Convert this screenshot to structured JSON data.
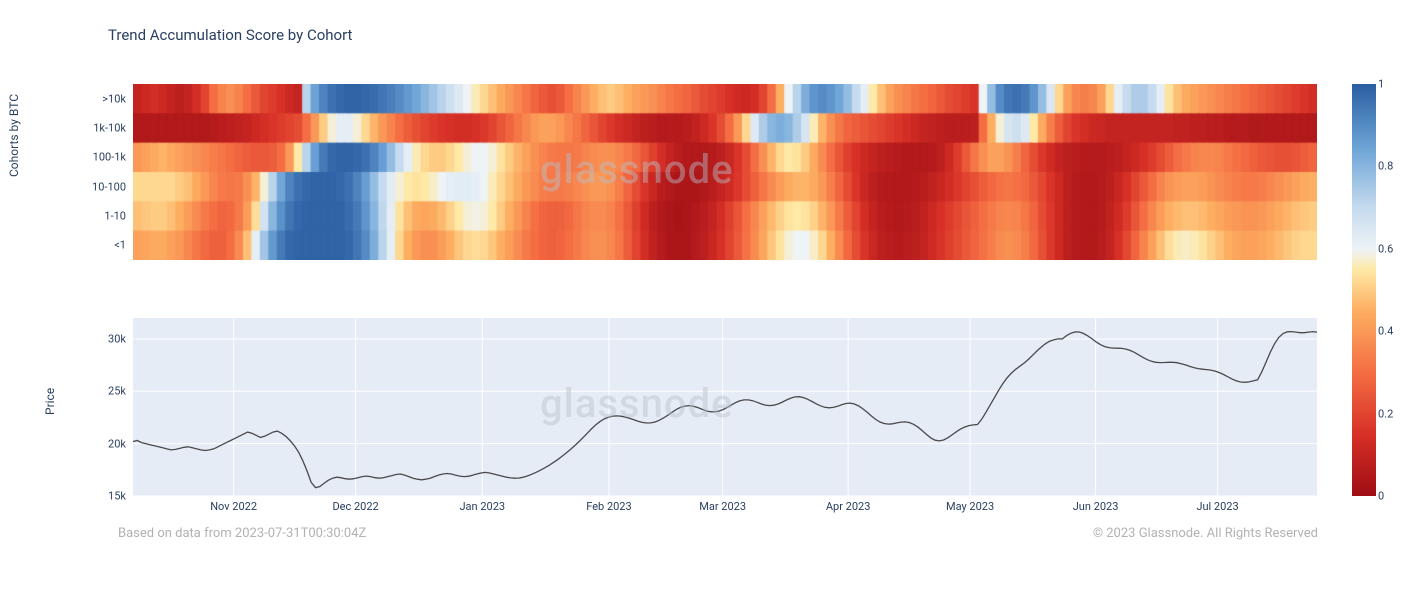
{
  "title": "Trend Accumulation Score by Cohort",
  "watermark": "glassnode",
  "footer_left": "Based on data from 2023-07-31T00:30:04Z",
  "footer_right": "© 2023 Glassnode. All Rights Reserved",
  "x_axis": {
    "labels": [
      "Nov 2022",
      "Dec 2022",
      "Jan 2023",
      "Feb 2023",
      "Mar 2023",
      "Apr 2023",
      "May 2023",
      "Jun 2023",
      "Jul 2023"
    ],
    "positions_pct": [
      8.5,
      18.8,
      29.5,
      40.2,
      49.8,
      60.4,
      70.7,
      81.3,
      91.6
    ]
  },
  "heatmap": {
    "type": "heatmap",
    "ylabel": "Cohorts by BTC",
    "y_categories": [
      ">10k",
      "1k-10k",
      "100-1k",
      "10-100",
      "1-10",
      "<1"
    ],
    "n_cols": 140,
    "colorscale": {
      "stops_value": [
        0.0,
        0.15,
        0.3,
        0.45,
        0.55,
        0.6,
        0.7,
        0.85,
        1.0
      ],
      "stops_color": [
        "#9e0d14",
        "#d73027",
        "#f46d43",
        "#fdae61",
        "#fee9a6",
        "#eef3f6",
        "#c6dbef",
        "#6ba3d6",
        "#2b5fa3"
      ]
    },
    "data": [
      [
        0.1,
        0.12,
        0.14,
        0.12,
        0.1,
        0.08,
        0.1,
        0.14,
        0.2,
        0.3,
        0.35,
        0.38,
        0.35,
        0.3,
        0.25,
        0.2,
        0.18,
        0.15,
        0.12,
        0.1,
        0.72,
        0.85,
        0.92,
        0.96,
        0.98,
        0.99,
        0.99,
        0.98,
        0.97,
        0.95,
        0.93,
        0.9,
        0.87,
        0.84,
        0.8,
        0.76,
        0.72,
        0.68,
        0.64,
        0.6,
        0.56,
        0.52,
        0.48,
        0.44,
        0.4,
        0.36,
        0.32,
        0.28,
        0.25,
        0.23,
        0.25,
        0.3,
        0.35,
        0.4,
        0.45,
        0.48,
        0.5,
        0.48,
        0.45,
        0.42,
        0.4,
        0.38,
        0.35,
        0.32,
        0.3,
        0.28,
        0.25,
        0.22,
        0.2,
        0.18,
        0.15,
        0.13,
        0.12,
        0.14,
        0.2,
        0.3,
        0.45,
        0.6,
        0.72,
        0.82,
        0.88,
        0.9,
        0.88,
        0.84,
        0.78,
        0.7,
        0.62,
        0.55,
        0.48,
        0.42,
        0.38,
        0.35,
        0.32,
        0.3,
        0.28,
        0.25,
        0.22,
        0.2,
        0.18,
        0.16,
        0.6,
        0.78,
        0.9,
        0.95,
        0.96,
        0.94,
        0.88,
        0.78,
        0.65,
        0.52,
        0.42,
        0.36,
        0.34,
        0.36,
        0.42,
        0.52,
        0.62,
        0.7,
        0.74,
        0.74,
        0.7,
        0.62,
        0.54,
        0.48,
        0.44,
        0.42,
        0.4,
        0.38,
        0.36,
        0.34,
        0.32,
        0.3,
        0.28,
        0.26,
        0.24,
        0.22,
        0.2,
        0.18,
        0.16,
        0.14
      ],
      [
        0.05,
        0.05,
        0.05,
        0.05,
        0.05,
        0.05,
        0.05,
        0.05,
        0.05,
        0.06,
        0.07,
        0.08,
        0.09,
        0.1,
        0.12,
        0.14,
        0.16,
        0.18,
        0.2,
        0.22,
        0.3,
        0.4,
        0.5,
        0.58,
        0.62,
        0.62,
        0.58,
        0.52,
        0.46,
        0.4,
        0.35,
        0.3,
        0.26,
        0.23,
        0.2,
        0.18,
        0.16,
        0.15,
        0.14,
        0.14,
        0.15,
        0.17,
        0.2,
        0.24,
        0.28,
        0.32,
        0.36,
        0.4,
        0.42,
        0.42,
        0.4,
        0.36,
        0.32,
        0.28,
        0.24,
        0.2,
        0.17,
        0.14,
        0.12,
        0.1,
        0.08,
        0.07,
        0.06,
        0.06,
        0.06,
        0.07,
        0.09,
        0.12,
        0.16,
        0.22,
        0.3,
        0.4,
        0.52,
        0.64,
        0.74,
        0.8,
        0.82,
        0.8,
        0.74,
        0.66,
        0.56,
        0.46,
        0.38,
        0.32,
        0.28,
        0.26,
        0.24,
        0.22,
        0.2,
        0.18,
        0.16,
        0.14,
        0.12,
        0.1,
        0.09,
        0.08,
        0.07,
        0.07,
        0.07,
        0.08,
        0.3,
        0.45,
        0.58,
        0.66,
        0.68,
        0.64,
        0.55,
        0.44,
        0.34,
        0.26,
        0.2,
        0.16,
        0.14,
        0.12,
        0.11,
        0.1,
        0.1,
        0.1,
        0.1,
        0.1,
        0.1,
        0.1,
        0.1,
        0.09,
        0.09,
        0.08,
        0.08,
        0.07,
        0.07,
        0.06,
        0.06,
        0.06,
        0.05,
        0.05,
        0.05,
        0.05,
        0.05,
        0.05,
        0.05,
        0.05
      ],
      [
        0.4,
        0.42,
        0.44,
        0.46,
        0.44,
        0.42,
        0.4,
        0.38,
        0.36,
        0.34,
        0.32,
        0.3,
        0.28,
        0.26,
        0.25,
        0.25,
        0.26,
        0.3,
        0.4,
        0.55,
        0.72,
        0.86,
        0.94,
        0.98,
        0.99,
        0.99,
        0.98,
        0.96,
        0.92,
        0.86,
        0.78,
        0.7,
        0.62,
        0.56,
        0.52,
        0.5,
        0.5,
        0.52,
        0.55,
        0.58,
        0.6,
        0.6,
        0.58,
        0.54,
        0.5,
        0.46,
        0.42,
        0.38,
        0.35,
        0.33,
        0.32,
        0.32,
        0.33,
        0.35,
        0.37,
        0.38,
        0.38,
        0.36,
        0.33,
        0.29,
        0.24,
        0.19,
        0.14,
        0.1,
        0.07,
        0.05,
        0.05,
        0.05,
        0.06,
        0.08,
        0.11,
        0.16,
        0.22,
        0.3,
        0.38,
        0.46,
        0.52,
        0.55,
        0.54,
        0.5,
        0.44,
        0.37,
        0.3,
        0.24,
        0.19,
        0.15,
        0.12,
        0.1,
        0.08,
        0.07,
        0.06,
        0.05,
        0.05,
        0.05,
        0.06,
        0.08,
        0.12,
        0.18,
        0.25,
        0.32,
        0.38,
        0.42,
        0.42,
        0.39,
        0.34,
        0.28,
        0.22,
        0.17,
        0.13,
        0.1,
        0.08,
        0.07,
        0.06,
        0.06,
        0.06,
        0.07,
        0.08,
        0.1,
        0.12,
        0.15,
        0.18,
        0.22,
        0.26,
        0.3,
        0.33,
        0.35,
        0.36,
        0.36,
        0.35,
        0.33,
        0.31,
        0.29,
        0.27,
        0.25,
        0.24,
        0.23,
        0.23,
        0.24,
        0.26,
        0.28
      ],
      [
        0.52,
        0.52,
        0.52,
        0.52,
        0.52,
        0.5,
        0.48,
        0.44,
        0.4,
        0.36,
        0.33,
        0.32,
        0.33,
        0.38,
        0.46,
        0.58,
        0.72,
        0.84,
        0.92,
        0.96,
        0.98,
        0.99,
        0.99,
        0.99,
        0.98,
        0.96,
        0.92,
        0.86,
        0.78,
        0.7,
        0.63,
        0.58,
        0.55,
        0.54,
        0.55,
        0.57,
        0.6,
        0.62,
        0.63,
        0.63,
        0.62,
        0.6,
        0.56,
        0.52,
        0.48,
        0.44,
        0.4,
        0.37,
        0.34,
        0.33,
        0.33,
        0.34,
        0.36,
        0.38,
        0.4,
        0.4,
        0.38,
        0.34,
        0.28,
        0.22,
        0.16,
        0.11,
        0.07,
        0.05,
        0.04,
        0.04,
        0.04,
        0.05,
        0.07,
        0.1,
        0.13,
        0.17,
        0.22,
        0.27,
        0.32,
        0.37,
        0.41,
        0.44,
        0.46,
        0.46,
        0.44,
        0.4,
        0.34,
        0.28,
        0.22,
        0.16,
        0.11,
        0.08,
        0.06,
        0.05,
        0.05,
        0.05,
        0.06,
        0.07,
        0.09,
        0.11,
        0.14,
        0.17,
        0.2,
        0.23,
        0.26,
        0.29,
        0.31,
        0.32,
        0.31,
        0.29,
        0.25,
        0.21,
        0.16,
        0.12,
        0.08,
        0.06,
        0.05,
        0.05,
        0.06,
        0.08,
        0.11,
        0.15,
        0.2,
        0.25,
        0.3,
        0.35,
        0.39,
        0.41,
        0.42,
        0.42,
        0.41,
        0.39,
        0.37,
        0.35,
        0.34,
        0.33,
        0.33,
        0.34,
        0.36,
        0.38,
        0.4,
        0.42,
        0.44,
        0.45
      ],
      [
        0.48,
        0.49,
        0.5,
        0.5,
        0.48,
        0.45,
        0.41,
        0.37,
        0.33,
        0.3,
        0.28,
        0.29,
        0.33,
        0.41,
        0.53,
        0.67,
        0.8,
        0.89,
        0.95,
        0.98,
        0.99,
        0.99,
        0.99,
        0.99,
        0.99,
        0.97,
        0.94,
        0.88,
        0.8,
        0.71,
        0.62,
        0.54,
        0.48,
        0.44,
        0.43,
        0.44,
        0.47,
        0.51,
        0.55,
        0.58,
        0.59,
        0.58,
        0.55,
        0.5,
        0.45,
        0.4,
        0.35,
        0.31,
        0.28,
        0.27,
        0.27,
        0.29,
        0.32,
        0.35,
        0.37,
        0.37,
        0.35,
        0.31,
        0.25,
        0.19,
        0.13,
        0.08,
        0.05,
        0.04,
        0.03,
        0.04,
        0.05,
        0.07,
        0.1,
        0.14,
        0.19,
        0.24,
        0.3,
        0.36,
        0.42,
        0.47,
        0.51,
        0.54,
        0.55,
        0.54,
        0.51,
        0.46,
        0.4,
        0.33,
        0.26,
        0.2,
        0.14,
        0.1,
        0.07,
        0.06,
        0.05,
        0.06,
        0.07,
        0.09,
        0.12,
        0.15,
        0.18,
        0.21,
        0.24,
        0.27,
        0.3,
        0.33,
        0.35,
        0.36,
        0.35,
        0.32,
        0.28,
        0.22,
        0.17,
        0.12,
        0.08,
        0.06,
        0.05,
        0.05,
        0.06,
        0.09,
        0.13,
        0.18,
        0.24,
        0.3,
        0.36,
        0.41,
        0.45,
        0.47,
        0.48,
        0.48,
        0.47,
        0.45,
        0.43,
        0.41,
        0.4,
        0.39,
        0.39,
        0.4,
        0.42,
        0.44,
        0.46,
        0.48,
        0.49,
        0.5
      ],
      [
        0.42,
        0.43,
        0.44,
        0.44,
        0.42,
        0.4,
        0.36,
        0.32,
        0.29,
        0.27,
        0.27,
        0.3,
        0.37,
        0.48,
        0.62,
        0.76,
        0.87,
        0.94,
        0.98,
        0.99,
        0.99,
        0.99,
        0.99,
        0.99,
        0.99,
        0.98,
        0.95,
        0.9,
        0.82,
        0.72,
        0.62,
        0.52,
        0.45,
        0.4,
        0.38,
        0.38,
        0.41,
        0.45,
        0.49,
        0.52,
        0.53,
        0.52,
        0.49,
        0.45,
        0.41,
        0.37,
        0.33,
        0.3,
        0.28,
        0.27,
        0.28,
        0.3,
        0.33,
        0.36,
        0.38,
        0.38,
        0.36,
        0.32,
        0.26,
        0.2,
        0.14,
        0.09,
        0.06,
        0.04,
        0.04,
        0.04,
        0.06,
        0.08,
        0.11,
        0.15,
        0.2,
        0.25,
        0.31,
        0.37,
        0.43,
        0.49,
        0.54,
        0.58,
        0.6,
        0.6,
        0.57,
        0.52,
        0.45,
        0.37,
        0.29,
        0.22,
        0.16,
        0.11,
        0.08,
        0.07,
        0.06,
        0.07,
        0.08,
        0.1,
        0.13,
        0.16,
        0.19,
        0.22,
        0.25,
        0.28,
        0.31,
        0.34,
        0.37,
        0.38,
        0.37,
        0.34,
        0.29,
        0.23,
        0.17,
        0.12,
        0.08,
        0.06,
        0.05,
        0.05,
        0.07,
        0.1,
        0.15,
        0.21,
        0.28,
        0.35,
        0.42,
        0.48,
        0.53,
        0.56,
        0.57,
        0.56,
        0.54,
        0.51,
        0.48,
        0.45,
        0.43,
        0.42,
        0.42,
        0.43,
        0.45,
        0.47,
        0.49,
        0.51,
        0.52,
        0.52
      ]
    ]
  },
  "price": {
    "type": "line",
    "ylabel": "Price",
    "ylim": [
      15000,
      32000
    ],
    "yticks": [
      15000,
      20000,
      25000,
      30000
    ],
    "ytick_labels": [
      "15k",
      "20k",
      "25k",
      "30k"
    ],
    "background": "#e5ecf6",
    "grid_color": "#ffffff",
    "line_color": "#4a4a4a",
    "line_width": 1.3,
    "n_points": 280,
    "series": [
      20200,
      20300,
      20100,
      20000,
      19900,
      19800,
      19700,
      19600,
      19500,
      19400,
      19450,
      19550,
      19650,
      19700,
      19600,
      19500,
      19400,
      19350,
      19400,
      19500,
      19700,
      19900,
      20100,
      20300,
      20500,
      20700,
      20900,
      21100,
      21000,
      20800,
      20600,
      20700,
      20900,
      21100,
      21200,
      21000,
      20700,
      20300,
      19800,
      19200,
      18400,
      17400,
      16300,
      15800,
      15900,
      16200,
      16500,
      16700,
      16800,
      16750,
      16650,
      16600,
      16650,
      16750,
      16850,
      16900,
      16850,
      16750,
      16700,
      16750,
      16850,
      16950,
      17050,
      17100,
      17000,
      16850,
      16700,
      16600,
      16550,
      16600,
      16700,
      16850,
      17000,
      17100,
      17150,
      17100,
      17000,
      16900,
      16850,
      16880,
      16980,
      17100,
      17200,
      17250,
      17200,
      17100,
      17000,
      16900,
      16800,
      16730,
      16700,
      16720,
      16800,
      16920,
      17080,
      17260,
      17460,
      17680,
      17920,
      18180,
      18460,
      18760,
      19080,
      19420,
      19780,
      20160,
      20560,
      20980,
      21400,
      21780,
      22100,
      22350,
      22520,
      22620,
      22650,
      22620,
      22540,
      22420,
      22280,
      22140,
      22030,
      21970,
      21980,
      22070,
      22230,
      22450,
      22710,
      22990,
      23250,
      23460,
      23590,
      23630,
      23580,
      23460,
      23300,
      23150,
      23050,
      23030,
      23100,
      23250,
      23460,
      23700,
      23920,
      24090,
      24180,
      24180,
      24100,
      23960,
      23800,
      23680,
      23630,
      23670,
      23790,
      23970,
      24170,
      24350,
      24460,
      24480,
      24400,
      24240,
      24030,
      23810,
      23610,
      23470,
      23420,
      23460,
      23570,
      23710,
      23830,
      23870,
      23790,
      23600,
      23320,
      22990,
      22640,
      22320,
      22070,
      21920,
      21870,
      21900,
      21980,
      22060,
      22080,
      22010,
      21840,
      21570,
      21230,
      20870,
      20550,
      20330,
      20260,
      20350,
      20560,
      20840,
      21130,
      21390,
      21590,
      21720,
      21790,
      21830,
      22330,
      23000,
      23700,
      24400,
      25100,
      25750,
      26300,
      26750,
      27100,
      27400,
      27700,
      28050,
      28450,
      28850,
      29220,
      29540,
      29780,
      29930,
      30000,
      30000,
      30320,
      30550,
      30670,
      30660,
      30520,
      30290,
      30000,
      29700,
      29450,
      29270,
      29170,
      29130,
      29120,
      29100,
      29030,
      28900,
      28710,
      28480,
      28240,
      28020,
      27860,
      27770,
      27740,
      27750,
      27770,
      27770,
      27730,
      27640,
      27520,
      27380,
      27260,
      27170,
      27110,
      27070,
      27020,
      26930,
      26790,
      26600,
      26380,
      26160,
      25990,
      25890,
      25860,
      25900,
      25990,
      26100,
      26860,
      27800,
      28730,
      29550,
      30150,
      30520,
      30680,
      30700,
      30650,
      30600,
      30600,
      30650,
      30700,
      30650
    ]
  },
  "colorbar": {
    "ticks": [
      0,
      0.2,
      0.4,
      0.6,
      0.8,
      1
    ],
    "tick_labels": [
      "0",
      "0.2",
      "0.4",
      "0.6",
      "0.8",
      "1"
    ]
  }
}
